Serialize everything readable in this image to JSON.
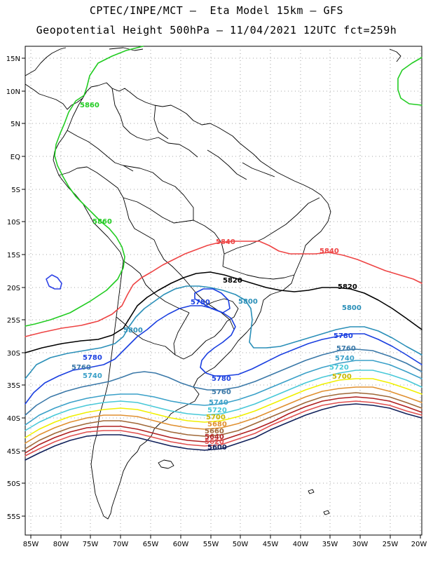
{
  "title_line1": "CPTEC/INPE/MCT –  Eta Model 15km – GFS",
  "title_line2": "Geopotential Height 500hPa – 11/04/2021 12UTC fct=259h",
  "lat_labels": [
    "15N",
    "10N",
    "5N",
    "EQ",
    "5S",
    "10S",
    "15S",
    "20S",
    "25S",
    "30S",
    "35S",
    "40S",
    "45S",
    "50S",
    "55S"
  ],
  "lon_labels": [
    "85W",
    "80W",
    "75W",
    "70W",
    "65W",
    "60W",
    "55W",
    "50W",
    "45W",
    "40W",
    "35W",
    "30W",
    "25W",
    "20W"
  ],
  "contour_labels": {
    "c5860a": "5860",
    "c5860b": "5860",
    "c5840a": "5840",
    "c5840b": "5840",
    "c5820a": "5820",
    "c5820b": "5820",
    "c5800a": "5800",
    "c5800b": "5800",
    "c5800c": "5800",
    "c5780a": "5780",
    "c5780b": "5780",
    "c5780c": "5780",
    "c5780d": "5780",
    "c5760a": "5760",
    "c5760b": "5760",
    "c5760c": "5760",
    "c5740a": "5740",
    "c5740b": "5740",
    "c5740c": "5740",
    "c5720a": "5720",
    "c5720b": "5720",
    "c5700a": "5700",
    "c5700b": "5700",
    "c5680": "5680",
    "c5660": "5660",
    "c5640": "5640",
    "c5620": "5620",
    "c5600": "5600"
  },
  "colors": {
    "c5860": "#22cc22",
    "c5840": "#ee4444",
    "c5820": "#000000",
    "c5800": "#2a8fb8",
    "c5780": "#1a3fe0",
    "c5760": "#3a78a8",
    "c5740": "#3aa0c8",
    "c5720": "#48c8d8",
    "c5700": "#f0f000",
    "c5680": "#e09030",
    "c5660": "#a06838",
    "c5640": "#b02020",
    "c5620": "#e05050",
    "c5600": "#10205a"
  }
}
